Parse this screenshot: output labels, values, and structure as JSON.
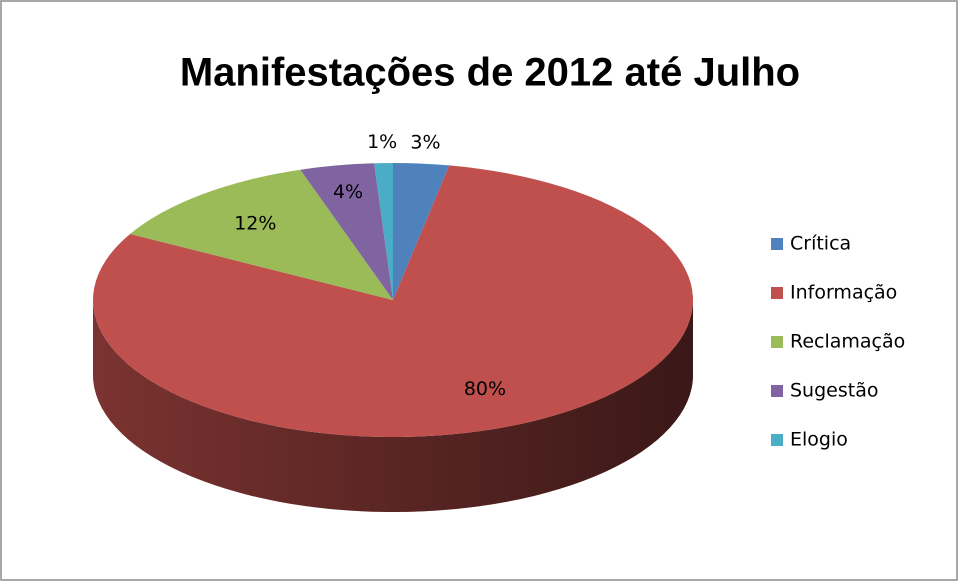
{
  "chart_data": {
    "type": "pie",
    "title": "Manifestações de 2012 até Julho",
    "categories": [
      "Crítica",
      "Informação",
      "Reclamação",
      "Sugestão",
      "Elogio"
    ],
    "values": [
      3,
      80,
      12,
      4,
      1
    ],
    "value_labels": [
      "3%",
      "80%",
      "12%",
      "4%",
      "1%"
    ],
    "colors": [
      "#4f81bd",
      "#c0504d",
      "#9bbb59",
      "#8064a2",
      "#4bacc6"
    ],
    "legend": "right"
  }
}
